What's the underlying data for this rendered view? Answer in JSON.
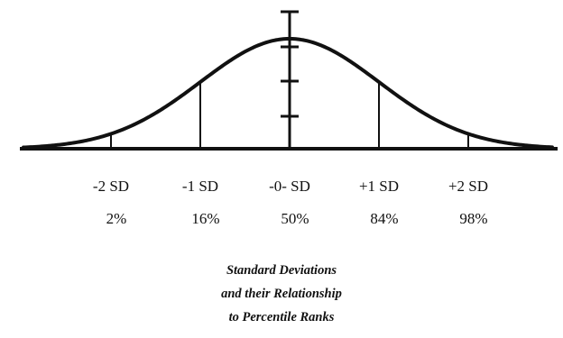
{
  "colors": {
    "ink": "#111111",
    "background": "#ffffff"
  },
  "markers": [
    {
      "sd": "-2 SD",
      "percentile": "2%",
      "z": -2
    },
    {
      "sd": "-1 SD",
      "percentile": "16%",
      "z": -1
    },
    {
      "sd": "-0- SD",
      "percentile": "50%",
      "z": 0
    },
    {
      "sd": "+1 SD",
      "percentile": "84%",
      "z": 1
    },
    {
      "sd": "+2 SD",
      "percentile": "98%",
      "z": 2
    }
  ],
  "caption": {
    "line1": "Standard Deviations",
    "line2": "and their Relationship",
    "line3": "to Percentile Ranks"
  }
}
